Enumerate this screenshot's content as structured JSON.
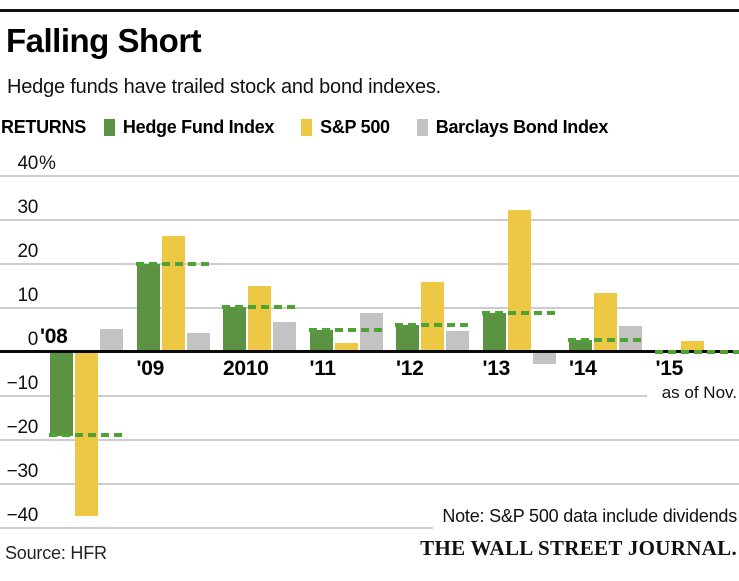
{
  "header": {
    "title": "Falling Short",
    "subtitle": "Hedge funds have trailed stock and bond indexes.",
    "legend_label": "RETURNS"
  },
  "chart_data": {
    "type": "bar",
    "title": "Falling Short",
    "subtitle": "Hedge funds have trailed stock and bond indexes.",
    "unit": "percent returns",
    "categories": [
      "'08",
      "'09",
      "2010",
      "'11",
      "'12",
      "'13",
      "'14",
      "'15"
    ],
    "series": [
      {
        "name": "Hedge Fund Index",
        "color": "#5b9342",
        "values": [
          -18.8,
          20.0,
          10.2,
          5.0,
          6.2,
          8.9,
          2.7,
          0
        ]
      },
      {
        "name": "S&P 500",
        "color": "#ecc844",
        "values": [
          -37.0,
          26.4,
          15.1,
          2.1,
          16.0,
          32.3,
          13.5,
          2.6
        ]
      },
      {
        "name": "Barclays Bond Index",
        "color": "#c3c3c3",
        "values": [
          5.3,
          4.3,
          6.8,
          8.8,
          4.8,
          -2.6,
          5.9,
          0
        ]
      }
    ],
    "hedge_fund_dash": {
      "description": "green dashed line marking Hedge Fund Index level across each year group",
      "color": "#4da334",
      "values": [
        -18.8,
        20.0,
        10.2,
        5.0,
        6.2,
        8.9,
        2.7,
        0
      ]
    },
    "y_ticks": [
      {
        "v": 40,
        "label": "40",
        "suffix": "%"
      },
      {
        "v": 30,
        "label": "30",
        "suffix": ""
      },
      {
        "v": 20,
        "label": "20",
        "suffix": ""
      },
      {
        "v": 10,
        "label": "10",
        "suffix": ""
      },
      {
        "v": 0,
        "label": "0",
        "suffix": ""
      },
      {
        "v": -10,
        "label": "−10",
        "suffix": ""
      },
      {
        "v": -20,
        "label": "−20",
        "suffix": ""
      },
      {
        "v": -30,
        "label": "−30",
        "suffix": ""
      },
      {
        "v": -40,
        "label": "−40",
        "suffix": ""
      }
    ],
    "ylim": [
      -42,
      42
    ],
    "grid": true,
    "legend_position": "top",
    "axis_note": "as of Nov."
  },
  "footer": {
    "source": "Source: HFR",
    "note": "Note: S&P 500 data include dividends",
    "brand": "THE WALL STREET JOURNAL."
  }
}
